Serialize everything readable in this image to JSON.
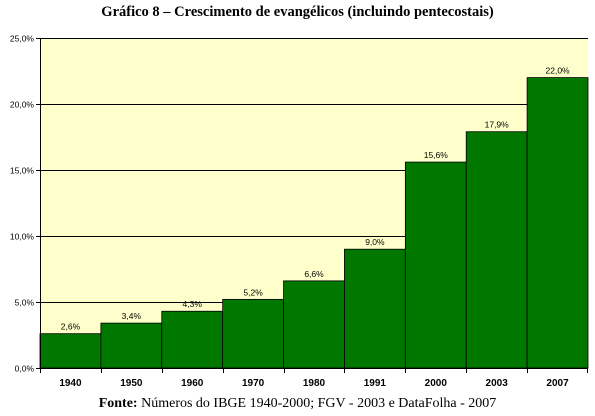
{
  "chart_data": {
    "type": "bar",
    "title": "Gráfico 8 – Crescimento de evangélicos (incluindo pentecostais)",
    "xlabel": "",
    "ylabel": "",
    "categories": [
      "1940",
      "1950",
      "1960",
      "1970",
      "1980",
      "1991",
      "2000",
      "2003",
      "2007"
    ],
    "values": [
      2.6,
      3.4,
      4.3,
      5.2,
      6.6,
      9.0,
      15.6,
      17.9,
      22.0
    ],
    "value_labels": [
      "2,6%",
      "3,4%",
      "4,3%",
      "5,2%",
      "6,6%",
      "9,0%",
      "15,6%",
      "17,9%",
      "22,0%"
    ],
    "ylim": [
      0,
      25
    ],
    "yticks": [
      0,
      5,
      10,
      15,
      20,
      25
    ],
    "ytick_labels": [
      "0,0%",
      "5,0%",
      "10,0%",
      "15,0%",
      "20,0%",
      "25,0%"
    ],
    "grid": true,
    "legend": "none",
    "colors": {
      "bar": "#007800",
      "bar_edge": "#000000",
      "plot_background": "#FFFFCC",
      "gridline": "#000000"
    }
  },
  "source": {
    "prefix": "Fonte:",
    "text": " Números do IBGE 1940-2000; FGV - 2003 e DataFolha - 2007"
  }
}
